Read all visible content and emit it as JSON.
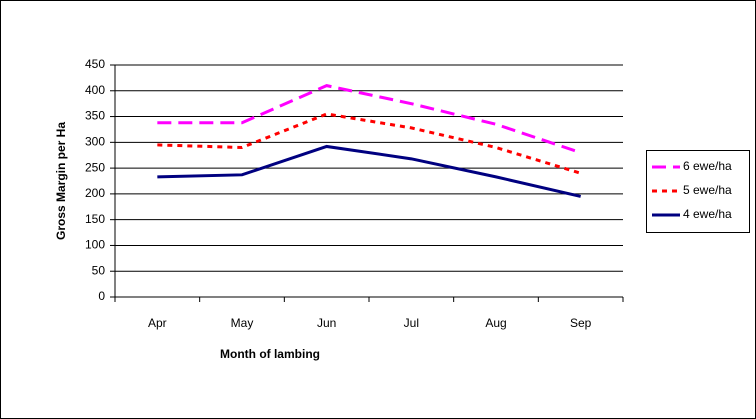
{
  "chart_data": {
    "type": "line",
    "x_label": "Month of lambing",
    "y_label": "Gross Margin per Ha",
    "categories": [
      "Apr",
      "May",
      "Jun",
      "Jul",
      "Aug",
      "Sep"
    ],
    "series": [
      {
        "name": "6 ewe/ha",
        "color": "#ff00ff",
        "style": "dashed",
        "values": [
          338,
          338,
          410,
          375,
          335,
          280
        ]
      },
      {
        "name": "5 ewe/ha",
        "color": "#ff0000",
        "style": "dotted",
        "values": [
          295,
          290,
          355,
          328,
          290,
          240
        ]
      },
      {
        "name": "4 ewe/ha",
        "color": "#000080",
        "style": "solid",
        "values": [
          233,
          237,
          292,
          268,
          233,
          195
        ]
      }
    ],
    "ylim": [
      0,
      450
    ],
    "yticks": [
      0,
      50,
      100,
      150,
      200,
      250,
      300,
      350,
      400,
      450
    ],
    "grid": true,
    "legend": "right"
  }
}
